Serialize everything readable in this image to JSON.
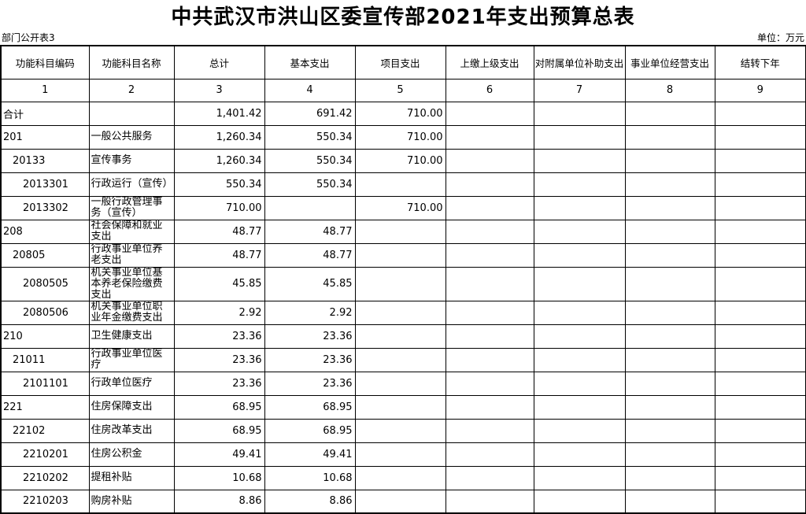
{
  "page": {
    "title": "中共武汉市洪山区委宣传部2021年支出预算总表",
    "table_label": "部门公开表3",
    "unit_label": "单位：万元"
  },
  "table": {
    "columns": [
      {
        "label": "功能科目编码",
        "num": "1"
      },
      {
        "label": "功能科目名称",
        "num": "2"
      },
      {
        "label": "总计",
        "num": "3"
      },
      {
        "label": "基本支出",
        "num": "4"
      },
      {
        "label": "项目支出",
        "num": "5"
      },
      {
        "label": "上缴上级支出",
        "num": "6"
      },
      {
        "label": "对附属单位补助支出",
        "num": "7"
      },
      {
        "label": "事业单位经营支出",
        "num": "8"
      },
      {
        "label": "结转下年",
        "num": "9"
      }
    ],
    "rows": [
      {
        "indent": 0,
        "cells": [
          "合计",
          "",
          "1,401.42",
          "691.42",
          "710.00",
          "",
          "",
          "",
          ""
        ]
      },
      {
        "indent": 0,
        "cells": [
          "201",
          "一般公共服务",
          "1,260.34",
          "550.34",
          "710.00",
          "",
          "",
          "",
          ""
        ]
      },
      {
        "indent": 1,
        "cells": [
          "20133",
          "宣传事务",
          "1,260.34",
          "550.34",
          "710.00",
          "",
          "",
          "",
          ""
        ]
      },
      {
        "indent": 2,
        "cells": [
          "2013301",
          "行政运行（宣传）",
          "550.34",
          "550.34",
          "",
          "",
          "",
          "",
          ""
        ]
      },
      {
        "indent": 2,
        "cells": [
          "2013302",
          "一般行政管理事务（宣传）",
          "710.00",
          "",
          "710.00",
          "",
          "",
          "",
          ""
        ]
      },
      {
        "indent": 0,
        "cells": [
          "208",
          "社会保障和就业支出",
          "48.77",
          "48.77",
          "",
          "",
          "",
          "",
          ""
        ]
      },
      {
        "indent": 1,
        "cells": [
          "20805",
          "行政事业单位养老支出",
          "48.77",
          "48.77",
          "",
          "",
          "",
          "",
          ""
        ]
      },
      {
        "indent": 2,
        "cells": [
          "2080505",
          "机关事业单位基本养老保险缴费支出",
          "45.85",
          "45.85",
          "",
          "",
          "",
          "",
          ""
        ]
      },
      {
        "indent": 2,
        "cells": [
          "2080506",
          "机关事业单位职业年金缴费支出",
          "2.92",
          "2.92",
          "",
          "",
          "",
          "",
          ""
        ]
      },
      {
        "indent": 0,
        "cells": [
          "210",
          "卫生健康支出",
          "23.36",
          "23.36",
          "",
          "",
          "",
          "",
          ""
        ]
      },
      {
        "indent": 1,
        "cells": [
          "21011",
          "行政事业单位医疗",
          "23.36",
          "23.36",
          "",
          "",
          "",
          "",
          ""
        ]
      },
      {
        "indent": 2,
        "cells": [
          "2101101",
          "行政单位医疗",
          "23.36",
          "23.36",
          "",
          "",
          "",
          "",
          ""
        ]
      },
      {
        "indent": 0,
        "cells": [
          "221",
          "住房保障支出",
          "68.95",
          "68.95",
          "",
          "",
          "",
          "",
          ""
        ]
      },
      {
        "indent": 1,
        "cells": [
          "22102",
          "住房改革支出",
          "68.95",
          "68.95",
          "",
          "",
          "",
          "",
          ""
        ]
      },
      {
        "indent": 2,
        "cells": [
          "2210201",
          "住房公积金",
          "49.41",
          "49.41",
          "",
          "",
          "",
          "",
          ""
        ]
      },
      {
        "indent": 2,
        "cells": [
          "2210202",
          "提租补贴",
          "10.68",
          "10.68",
          "",
          "",
          "",
          "",
          ""
        ]
      },
      {
        "indent": 2,
        "cells": [
          "2210203",
          "购房补贴",
          "8.86",
          "8.86",
          "",
          "",
          "",
          "",
          ""
        ]
      }
    ]
  }
}
